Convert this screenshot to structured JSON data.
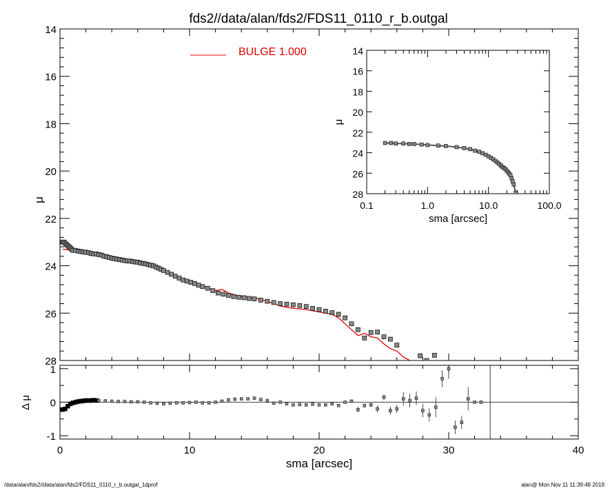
{
  "title": "fds2//data/alan/fds2/FDS11_0110_r_b.outgal",
  "footer_left": "/data/alan/fds2//data/alan/fds2/FDS11_0110_r_b.outgal_1dprof",
  "footer_right": "alan@  Mon Nov 11 11:39:48 2019",
  "legend_label": "BULGE  1.000",
  "colors": {
    "model": "#e00000",
    "data": "#000000",
    "marker_fill": "#888888"
  },
  "chart_data": [
    {
      "id": "main",
      "type": "scatter",
      "xlabel": "",
      "ylabel": "μ",
      "xlim": [
        0,
        40
      ],
      "ylim": [
        28,
        14
      ],
      "yticks": [
        "14",
        "16",
        "18",
        "20",
        "22",
        "24",
        "26",
        "28"
      ],
      "xticks": [
        "0",
        "10",
        "20",
        "30",
        "40"
      ],
      "data_series": {
        "x": [
          0.2,
          0.3,
          0.4,
          0.5,
          0.6,
          0.7,
          0.8,
          0.9,
          1.0,
          1.2,
          1.4,
          1.6,
          1.8,
          2.0,
          2.2,
          2.4,
          2.6,
          2.8,
          3.0,
          3.2,
          3.4,
          3.6,
          3.8,
          4.0,
          4.2,
          4.4,
          4.6,
          4.8,
          5.0,
          5.2,
          5.4,
          5.6,
          5.8,
          6.0,
          6.2,
          6.4,
          6.6,
          6.8,
          7.0,
          7.2,
          7.4,
          7.6,
          7.8,
          8.0,
          8.3,
          8.6,
          8.9,
          9.2,
          9.5,
          9.8,
          10.1,
          10.4,
          10.7,
          11.0,
          11.4,
          11.8,
          12.2,
          12.6,
          13.0,
          13.4,
          13.8,
          14.2,
          14.6,
          15.0,
          15.5,
          16.0,
          16.5,
          17.0,
          17.5,
          18.0,
          18.5,
          19.0,
          19.5,
          20.0,
          20.5,
          21.0,
          21.5,
          22.0,
          22.5,
          23.0,
          23.5,
          24.0,
          24.5,
          25.0,
          25.5,
          26.0,
          27.8,
          28.3,
          28.9
        ],
        "y": [
          23.0,
          23.0,
          23.05,
          23.1,
          23.15,
          23.2,
          23.25,
          23.3,
          23.35,
          23.35,
          23.38,
          23.4,
          23.42,
          23.43,
          23.45,
          23.48,
          23.5,
          23.5,
          23.53,
          23.55,
          23.6,
          23.62,
          23.65,
          23.68,
          23.7,
          23.72,
          23.74,
          23.76,
          23.78,
          23.8,
          23.8,
          23.82,
          23.84,
          23.85,
          23.88,
          23.9,
          23.92,
          23.95,
          23.98,
          24.0,
          24.05,
          24.1,
          24.15,
          24.2,
          24.28,
          24.36,
          24.44,
          24.52,
          24.6,
          24.65,
          24.7,
          24.75,
          24.82,
          24.88,
          24.95,
          25.05,
          25.15,
          25.2,
          25.25,
          25.3,
          25.33,
          25.35,
          25.38,
          25.4,
          25.45,
          25.5,
          25.55,
          25.6,
          25.62,
          25.65,
          25.68,
          25.72,
          25.8,
          25.85,
          25.92,
          25.98,
          26.05,
          26.2,
          26.45,
          26.7,
          27.05,
          26.82,
          26.8,
          27.0,
          27.1,
          27.35,
          27.8,
          28.0,
          27.78
        ]
      },
      "model_series": {
        "name": "BULGE  1.000",
        "x": [
          0.2,
          1.0,
          2.0,
          3.0,
          4.0,
          5.0,
          6.0,
          7.0,
          8.0,
          9.0,
          10.0,
          11.0,
          12.0,
          12.5,
          13.0,
          14.0,
          15.0,
          16.0,
          17.0,
          18.0,
          19.0,
          20.0,
          21.0,
          21.5,
          22.0,
          22.5,
          23.0,
          23.5,
          24.0,
          24.5,
          25.0,
          25.5,
          26.0,
          26.5,
          27.0,
          27.5,
          28.0
        ],
        "y": [
          23.3,
          23.35,
          23.45,
          23.55,
          23.65,
          23.8,
          23.85,
          23.95,
          24.25,
          24.45,
          24.65,
          24.85,
          25.05,
          25.0,
          25.15,
          25.3,
          25.35,
          25.5,
          25.7,
          25.8,
          25.85,
          25.95,
          26.05,
          26.2,
          26.45,
          26.7,
          26.95,
          26.85,
          27.0,
          27.05,
          27.3,
          27.5,
          27.6,
          27.85,
          28.0,
          28.15,
          28.1
        ]
      }
    },
    {
      "id": "inset",
      "type": "scatter",
      "xscale": "log",
      "xlabel": "sma [arcsec]",
      "ylabel": "μ",
      "xlim": [
        0.1,
        100
      ],
      "ylim": [
        28,
        14
      ],
      "yticks": [
        "14",
        "16",
        "18",
        "20",
        "22",
        "24",
        "26",
        "28"
      ],
      "xticks": [
        "0.1",
        "1.0",
        "10.0",
        "100.0"
      ],
      "x": [
        0.2,
        0.25,
        0.3,
        0.4,
        0.5,
        0.6,
        0.8,
        1.0,
        1.5,
        2.0,
        3.0,
        4.0,
        5.0,
        6.0,
        7.0,
        8.0,
        9.0,
        10.0,
        11.0,
        12.0,
        13.0,
        14.0,
        15.0,
        16.0,
        17.0,
        18.0,
        19.0,
        20.0,
        21.0,
        22.0,
        23.0,
        24.0,
        25.0,
        26.0,
        28.0
      ],
      "y": [
        23.05,
        23.05,
        23.1,
        23.1,
        23.15,
        23.15,
        23.2,
        23.25,
        23.3,
        23.35,
        23.45,
        23.55,
        23.65,
        23.8,
        23.9,
        24.05,
        24.2,
        24.35,
        24.5,
        24.65,
        24.8,
        24.95,
        25.1,
        25.25,
        25.4,
        25.5,
        25.6,
        25.75,
        25.9,
        26.05,
        26.2,
        26.5,
        26.8,
        27.1,
        27.9
      ]
    },
    {
      "id": "residual",
      "type": "scatter",
      "xlabel": "sma [arcsec]",
      "ylabel": "Δ μ",
      "xlim": [
        0,
        40
      ],
      "ylim": [
        -1.1,
        1.1
      ],
      "yticks": [
        "1",
        "0",
        "-1"
      ],
      "xticks": [
        "0",
        "10",
        "20",
        "30",
        "40"
      ],
      "vline_x": 33.2,
      "x": [
        0.2,
        0.4,
        0.6,
        0.8,
        1.0,
        1.2,
        1.4,
        1.6,
        1.8,
        2.0,
        2.2,
        2.4,
        2.6,
        2.8,
        3.0,
        3.5,
        4.0,
        4.5,
        5.0,
        5.5,
        6.0,
        6.5,
        7.0,
        7.5,
        8.0,
        8.5,
        9.0,
        9.5,
        10.0,
        10.5,
        11.0,
        11.5,
        12.0,
        12.5,
        13.0,
        13.5,
        14.0,
        14.5,
        15.0,
        15.5,
        16.0,
        16.5,
        17.0,
        17.5,
        18.0,
        18.5,
        19.0,
        19.5,
        20.0,
        20.5,
        21.0,
        21.5,
        22.0,
        22.5,
        23.0,
        23.5,
        24.0,
        24.5,
        25.0,
        25.5,
        26.0,
        26.5,
        27.0,
        27.5,
        28.0,
        28.5,
        29.0,
        29.5,
        30.0,
        30.5,
        31.0,
        31.5,
        32.0,
        32.5
      ],
      "y": [
        -0.22,
        -0.2,
        -0.12,
        -0.05,
        -0.02,
        0.0,
        0.02,
        0.03,
        0.04,
        0.05,
        0.05,
        0.05,
        0.06,
        0.05,
        0.05,
        0.04,
        0.03,
        0.02,
        0.02,
        0.01,
        0.01,
        0.0,
        -0.02,
        -0.03,
        -0.05,
        -0.03,
        -0.02,
        -0.02,
        -0.01,
        0.0,
        -0.02,
        -0.02,
        0.0,
        0.03,
        0.07,
        0.09,
        0.1,
        0.1,
        0.12,
        0.08,
        0.05,
        -0.03,
        0.0,
        -0.05,
        -0.08,
        -0.07,
        -0.08,
        -0.06,
        -0.08,
        -0.08,
        -0.05,
        -0.1,
        0.0,
        0.03,
        -0.22,
        -0.1,
        -0.08,
        -0.2,
        0.15,
        -0.25,
        -0.2,
        0.1,
        0.05,
        0.12,
        -0.25,
        -0.38,
        -0.15,
        0.7,
        1.0,
        -0.75,
        -0.6,
        0.1,
        0.0,
        0.0
      ],
      "err": [
        0.02,
        0.02,
        0.02,
        0.02,
        0.02,
        0.02,
        0.02,
        0.02,
        0.02,
        0.02,
        0.02,
        0.02,
        0.02,
        0.02,
        0.02,
        0.02,
        0.02,
        0.02,
        0.02,
        0.02,
        0.02,
        0.02,
        0.02,
        0.02,
        0.02,
        0.02,
        0.02,
        0.02,
        0.02,
        0.02,
        0.02,
        0.02,
        0.02,
        0.02,
        0.02,
        0.02,
        0.02,
        0.02,
        0.02,
        0.02,
        0.02,
        0.02,
        0.02,
        0.02,
        0.02,
        0.02,
        0.02,
        0.02,
        0.02,
        0.02,
        0.02,
        0.02,
        0.02,
        0.05,
        0.08,
        0.06,
        0.06,
        0.1,
        0.08,
        0.12,
        0.12,
        0.2,
        0.2,
        0.2,
        0.2,
        0.2,
        0.3,
        0.25,
        0.3,
        0.2,
        0.2,
        0.35,
        0.0,
        0.0
      ]
    }
  ]
}
